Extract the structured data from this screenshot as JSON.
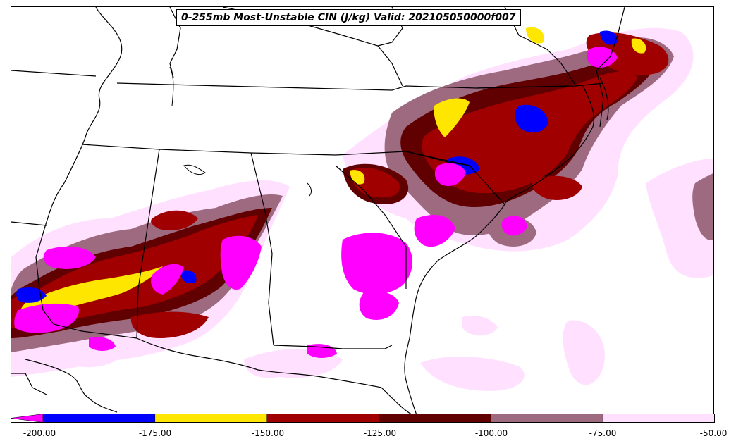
{
  "title": "0-255mb Most-Unstable CIN (J/kg) Valid: 202105050000f007",
  "colorbar": {
    "ticks": [
      "-200.00",
      "-175.00",
      "-150.00",
      "-125.00",
      "-100.00",
      "-75.00",
      "-50.00"
    ],
    "bins": [
      {
        "range": "< -200",
        "color": "#ff00ff"
      },
      {
        "range": "-200 to -175",
        "color": "#0000ff"
      },
      {
        "range": "-175 to -150",
        "color": "#ffe600"
      },
      {
        "range": "-150 to -125",
        "color": "#a00000"
      },
      {
        "range": "-125 to -100",
        "color": "#600000"
      },
      {
        "range": "-100 to -75",
        "color": "#9e6a80"
      },
      {
        "range": "-75 to -50",
        "color": "#ffe0ff"
      }
    ],
    "extend": "min"
  }
}
